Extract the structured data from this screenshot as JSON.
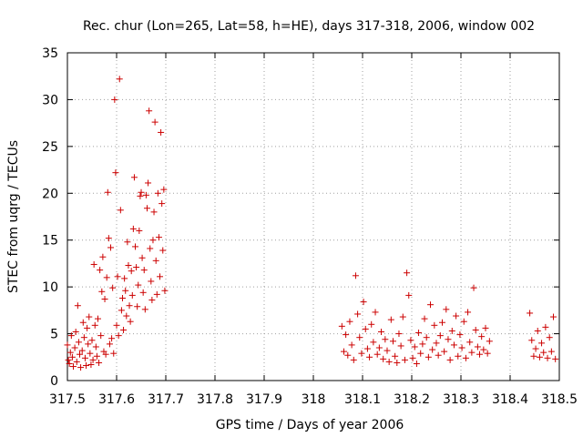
{
  "chart_data": {
    "type": "scatter",
    "title": "Rec. chur (Lon=265, Lat=58, h=HE), days 317-318, 2006, window 002",
    "xlabel": "GPS time / Days of year 2006",
    "ylabel": "STEC from uqrg / TECUs",
    "xlim": [
      317.5,
      318.5
    ],
    "ylim": [
      0,
      35
    ],
    "grid": true,
    "marker": "+",
    "color": "#cc0000",
    "x_tick_labels": [
      "317.5",
      "317.6",
      "317.7",
      "317.8",
      "317.9",
      "318",
      "318.1",
      "318.2",
      "318.3",
      "318.4",
      "318.5"
    ],
    "y_tick_labels": [
      "0",
      "5",
      "10",
      "15",
      "20",
      "25",
      "30",
      "35"
    ],
    "series": [
      {
        "name": "STEC",
        "points": [
          [
            317.5,
            3.8
          ],
          [
            317.502,
            2.2
          ],
          [
            317.504,
            1.8
          ],
          [
            317.506,
            3.0
          ],
          [
            317.508,
            4.8
          ],
          [
            317.51,
            2.5
          ],
          [
            317.512,
            1.5
          ],
          [
            317.515,
            3.5
          ],
          [
            317.517,
            5.2
          ],
          [
            317.519,
            2.0
          ],
          [
            317.521,
            8.0
          ],
          [
            317.523,
            4.1
          ],
          [
            317.525,
            2.8
          ],
          [
            317.527,
            1.4
          ],
          [
            317.53,
            3.2
          ],
          [
            317.532,
            6.2
          ],
          [
            317.534,
            4.6
          ],
          [
            317.536,
            2.4
          ],
          [
            317.538,
            1.6
          ],
          [
            317.54,
            5.6
          ],
          [
            317.542,
            3.9
          ],
          [
            317.544,
            6.8
          ],
          [
            317.546,
            2.9
          ],
          [
            317.548,
            1.7
          ],
          [
            317.55,
            4.3
          ],
          [
            317.552,
            2.2
          ],
          [
            317.554,
            12.4
          ],
          [
            317.556,
            5.9
          ],
          [
            317.558,
            3.6
          ],
          [
            317.56,
            2.6
          ],
          [
            317.562,
            6.6
          ],
          [
            317.564,
            1.9
          ],
          [
            317.566,
            11.8
          ],
          [
            317.568,
            4.8
          ],
          [
            317.57,
            9.5
          ],
          [
            317.572,
            13.2
          ],
          [
            317.574,
            3.1
          ],
          [
            317.576,
            8.7
          ],
          [
            317.578,
            2.8
          ],
          [
            317.58,
            11.0
          ],
          [
            317.582,
            20.1
          ],
          [
            317.584,
            15.2
          ],
          [
            317.586,
            3.9
          ],
          [
            317.588,
            14.2
          ],
          [
            317.59,
            4.5
          ],
          [
            317.592,
            9.9
          ],
          [
            317.594,
            2.9
          ],
          [
            317.596,
            30.0
          ],
          [
            317.598,
            22.2
          ],
          [
            317.6,
            5.9
          ],
          [
            317.602,
            11.1
          ],
          [
            317.604,
            4.8
          ],
          [
            317.606,
            32.2
          ],
          [
            317.608,
            18.2
          ],
          [
            317.61,
            7.5
          ],
          [
            317.612,
            8.8
          ],
          [
            317.614,
            5.4
          ],
          [
            317.616,
            10.9
          ],
          [
            317.618,
            9.6
          ],
          [
            317.62,
            6.9
          ],
          [
            317.622,
            14.8
          ],
          [
            317.624,
            12.3
          ],
          [
            317.626,
            8.0
          ],
          [
            317.628,
            6.3
          ],
          [
            317.63,
            11.7
          ],
          [
            317.632,
            9.1
          ],
          [
            317.634,
            16.2
          ],
          [
            317.636,
            21.7
          ],
          [
            317.638,
            14.3
          ],
          [
            317.64,
            12.1
          ],
          [
            317.642,
            7.9
          ],
          [
            317.644,
            10.2
          ],
          [
            317.646,
            16.0
          ],
          [
            317.648,
            19.7
          ],
          [
            317.65,
            20.1
          ],
          [
            317.652,
            13.1
          ],
          [
            317.654,
            9.4
          ],
          [
            317.656,
            11.8
          ],
          [
            317.658,
            7.6
          ],
          [
            317.66,
            19.8
          ],
          [
            317.662,
            18.4
          ],
          [
            317.664,
            21.1
          ],
          [
            317.666,
            28.8
          ],
          [
            317.668,
            14.1
          ],
          [
            317.67,
            10.6
          ],
          [
            317.672,
            8.6
          ],
          [
            317.674,
            15.0
          ],
          [
            317.676,
            18.0
          ],
          [
            317.678,
            27.6
          ],
          [
            317.68,
            12.8
          ],
          [
            317.682,
            9.2
          ],
          [
            317.684,
            20.0
          ],
          [
            317.686,
            15.3
          ],
          [
            317.688,
            11.1
          ],
          [
            317.69,
            26.5
          ],
          [
            317.692,
            18.9
          ],
          [
            317.694,
            13.9
          ],
          [
            317.696,
            20.4
          ],
          [
            317.698,
            9.6
          ],
          [
            318.058,
            5.8
          ],
          [
            318.062,
            3.1
          ],
          [
            318.066,
            4.9
          ],
          [
            318.07,
            2.7
          ],
          [
            318.074,
            6.3
          ],
          [
            318.078,
            3.8
          ],
          [
            318.082,
            2.2
          ],
          [
            318.086,
            11.2
          ],
          [
            318.09,
            7.1
          ],
          [
            318.094,
            4.6
          ],
          [
            318.098,
            2.9
          ],
          [
            318.102,
            8.4
          ],
          [
            318.106,
            5.5
          ],
          [
            318.11,
            3.4
          ],
          [
            318.114,
            2.5
          ],
          [
            318.118,
            6.0
          ],
          [
            318.122,
            4.1
          ],
          [
            318.126,
            7.3
          ],
          [
            318.13,
            2.8
          ],
          [
            318.134,
            3.5
          ],
          [
            318.138,
            5.2
          ],
          [
            318.142,
            2.3
          ],
          [
            318.146,
            4.4
          ],
          [
            318.15,
            3.2
          ],
          [
            318.154,
            2.0
          ],
          [
            318.158,
            6.5
          ],
          [
            318.162,
            4.2
          ],
          [
            318.166,
            2.6
          ],
          [
            318.17,
            1.9
          ],
          [
            318.174,
            5.0
          ],
          [
            318.178,
            3.7
          ],
          [
            318.182,
            6.8
          ],
          [
            318.186,
            2.2
          ],
          [
            318.19,
            11.5
          ],
          [
            318.194,
            9.1
          ],
          [
            318.198,
            4.3
          ],
          [
            318.202,
            2.4
          ],
          [
            318.206,
            3.6
          ],
          [
            318.21,
            1.8
          ],
          [
            318.214,
            5.1
          ],
          [
            318.218,
            2.9
          ],
          [
            318.222,
            3.9
          ],
          [
            318.226,
            6.6
          ],
          [
            318.23,
            4.6
          ],
          [
            318.234,
            2.5
          ],
          [
            318.238,
            8.1
          ],
          [
            318.242,
            3.3
          ],
          [
            318.246,
            5.9
          ],
          [
            318.25,
            4.0
          ],
          [
            318.254,
            2.7
          ],
          [
            318.258,
            4.8
          ],
          [
            318.262,
            6.2
          ],
          [
            318.266,
            3.1
          ],
          [
            318.27,
            7.6
          ],
          [
            318.274,
            4.4
          ],
          [
            318.278,
            2.2
          ],
          [
            318.282,
            5.3
          ],
          [
            318.286,
            3.8
          ],
          [
            318.29,
            6.9
          ],
          [
            318.294,
            2.6
          ],
          [
            318.298,
            4.9
          ],
          [
            318.302,
            3.5
          ],
          [
            318.306,
            6.3
          ],
          [
            318.31,
            2.4
          ],
          [
            318.314,
            7.3
          ],
          [
            318.318,
            4.1
          ],
          [
            318.322,
            3.0
          ],
          [
            318.326,
            9.9
          ],
          [
            318.33,
            5.4
          ],
          [
            318.334,
            3.6
          ],
          [
            318.338,
            2.8
          ],
          [
            318.342,
            4.7
          ],
          [
            318.346,
            3.3
          ],
          [
            318.35,
            5.6
          ],
          [
            318.354,
            2.9
          ],
          [
            318.358,
            4.2
          ],
          [
            318.44,
            7.2
          ],
          [
            318.444,
            4.3
          ],
          [
            318.448,
            2.6
          ],
          [
            318.452,
            3.4
          ],
          [
            318.456,
            5.3
          ],
          [
            318.46,
            2.5
          ],
          [
            318.464,
            4.0
          ],
          [
            318.468,
            3.0
          ],
          [
            318.472,
            5.7
          ],
          [
            318.476,
            2.4
          ],
          [
            318.48,
            4.6
          ],
          [
            318.484,
            3.1
          ],
          [
            318.488,
            6.8
          ],
          [
            318.492,
            2.3
          ]
        ]
      }
    ]
  }
}
